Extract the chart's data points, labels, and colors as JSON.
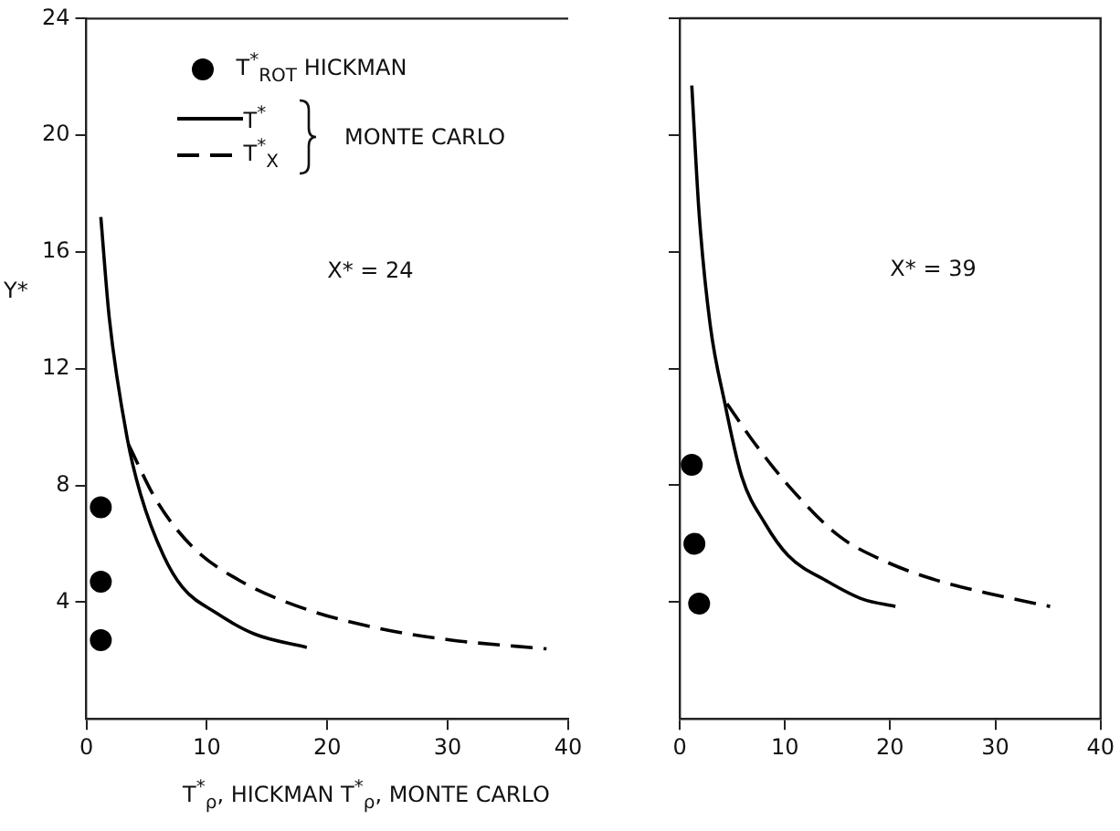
{
  "chart_data": [
    {
      "type": "scatter",
      "xlabel": "T$^{*}$$_{ρ}$, HICKMAN   T$^{*}$$_{ρ}$, MONTE CARLO",
      "ylabel": "Y*",
      "legend_title": "MONTE CARLO",
      "annotations": [
        "X* = 24"
      ],
      "xlim": [
        0,
        40
      ],
      "xticks": [
        0,
        10,
        20,
        30,
        40
      ],
      "ylim": [
        0,
        24
      ],
      "yticks": [
        4,
        8,
        12,
        16,
        20,
        24
      ],
      "grid": false,
      "legend": "top left",
      "series": [
        {
          "name": "T$^{*}$$_{ROT}$ HICKMAN",
          "marker": "circle",
          "color": "#000000",
          "x": [
            1.2,
            1.2,
            1.2
          ],
          "values": [
            7.25,
            4.7,
            2.7
          ]
        },
        {
          "name": "T$^{*}$",
          "type": "line",
          "line_style": "solid",
          "color": "#000000",
          "x": [
            1.2,
            1.9,
            3.4,
            4.5,
            6.4,
            8.0,
            10.7,
            14,
            18.3
          ],
          "values": [
            17.2,
            13.75,
            9.6,
            7.7,
            5.6,
            4.5,
            3.65,
            2.9,
            2.45
          ]
        },
        {
          "name": "T$^{*}$$_{X}$",
          "type": "line",
          "line_style": "dashed",
          "color": "#000000",
          "x": [
            3.5,
            5.8,
            8.8,
            12.9,
            18.3,
            24.3,
            30.3,
            38.2
          ],
          "values": [
            9.4,
            7.5,
            5.9,
            4.7,
            3.75,
            3.1,
            2.7,
            2.4
          ]
        }
      ]
    },
    {
      "type": "scatter",
      "annotations": [
        "X* = 39"
      ],
      "xlim": [
        0,
        40
      ],
      "xticks": [
        0,
        10,
        20,
        30,
        40
      ],
      "ylim": [
        0,
        24
      ],
      "yticks": [
        4,
        8,
        12,
        16,
        20,
        24
      ],
      "grid": false,
      "legend": false,
      "tick_labels": "x",
      "series": [
        {
          "marker": "circle",
          "color": "#000000",
          "x": [
            1.15,
            1.4,
            1.85
          ],
          "values": [
            8.7,
            6.0,
            3.95
          ]
        },
        {
          "type": "line",
          "line_style": "solid",
          "color": "#000000",
          "x": [
            1.15,
            1.85,
            2.9,
            4.3,
            5.9,
            8.1,
            10.3,
            14.1,
            17.4,
            20.5
          ],
          "values": [
            21.7,
            17.3,
            13.5,
            10.8,
            8.3,
            6.7,
            5.6,
            4.7,
            4.1,
            3.85
          ]
        },
        {
          "type": "line",
          "line_style": "dashed",
          "color": "#000000",
          "x": [
            4.5,
            7.0,
            10.8,
            15.2,
            19.5,
            24.4,
            29.3,
            35.2
          ],
          "values": [
            10.8,
            9.5,
            7.8,
            6.25,
            5.4,
            4.75,
            4.3,
            3.85
          ]
        }
      ]
    }
  ]
}
